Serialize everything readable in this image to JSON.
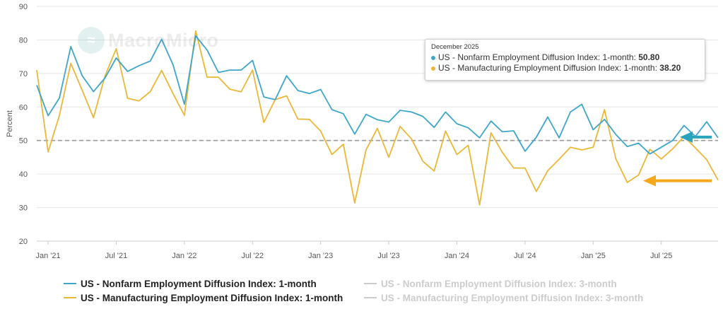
{
  "chart_data": {
    "type": "line",
    "ylabel": "Percent",
    "ylim": [
      20,
      90
    ],
    "yticks": [
      20,
      30,
      40,
      50,
      60,
      70,
      80,
      90
    ],
    "reference_line": 50,
    "xtick_labels": [
      "Jan '21",
      "Jul '21",
      "Jan '22",
      "Jul '22",
      "Jan '23",
      "Jul '23",
      "Jan '24",
      "Jul '24",
      "Jan '25",
      "Jul '25"
    ],
    "xtick_indices": [
      1,
      7,
      13,
      19,
      25,
      31,
      37,
      43,
      49,
      55
    ],
    "x_start": "Dec 2020",
    "x_end": "Dec 2025",
    "series": [
      {
        "name": "US - Nonfarm Employment Diffusion Index: 1-month",
        "color": "#3ea6c9",
        "values": [
          66.5,
          57.4,
          62.7,
          78.0,
          69.3,
          64.6,
          68.6,
          74.6,
          70.6,
          72.3,
          73.7,
          80.2,
          72.6,
          60.8,
          81.2,
          77.0,
          70.3,
          71.0,
          71.0,
          73.9,
          63.0,
          62.2,
          69.3,
          64.9,
          64.0,
          65.2,
          59.2,
          58.0,
          51.9,
          57.8,
          56.2,
          55.5,
          59.0,
          58.5,
          57.2,
          53.9,
          58.5,
          55.0,
          53.8,
          50.8,
          55.8,
          52.6,
          52.9,
          46.8,
          51.0,
          57.0,
          50.8,
          58.5,
          60.8,
          53.2,
          56.3,
          51.8,
          48.2,
          49.2,
          46.0,
          48.0,
          50.0,
          54.5,
          51.2,
          55.6,
          50.8
        ]
      },
      {
        "name": "US - Manufacturing Employment Diffusion Index: 1-month",
        "color": "#ebb737",
        "values": [
          71.0,
          46.6,
          57.5,
          73.0,
          65.0,
          56.8,
          69.2,
          77.4,
          62.6,
          61.8,
          64.6,
          70.9,
          64.0,
          57.5,
          82.7,
          68.9,
          68.9,
          65.3,
          64.5,
          71.0,
          55.4,
          62.2,
          63.3,
          56.4,
          56.3,
          52.8,
          45.8,
          48.9,
          31.4,
          47.2,
          53.6,
          45.0,
          54.2,
          50.5,
          43.8,
          40.9,
          52.8,
          45.8,
          48.6,
          30.8,
          52.3,
          46.5,
          41.8,
          41.8,
          34.8,
          41.0,
          44.4,
          48.0,
          47.2,
          48.0,
          59.2,
          44.5,
          37.5,
          39.7,
          47.4,
          44.5,
          47.5,
          51.2,
          47.8,
          44.3,
          38.2
        ]
      },
      {
        "name": "US - Nonfarm Employment Diffusion Index: 3-month",
        "color": "#cccccc",
        "visible": false
      },
      {
        "name": "US - Manufacturing Employment Diffusion Index: 3-month",
        "color": "#cccccc",
        "visible": false
      }
    ],
    "tooltip": {
      "date": "December 2025",
      "rows": [
        {
          "label": "US - Nonfarm Employment Diffusion Index: 1-month:",
          "value": "50.80",
          "color": "#3ea6c9"
        },
        {
          "label": "US - Manufacturing Employment Diffusion Index: 1-month:",
          "value": "38.20",
          "color": "#ebb737"
        }
      ]
    },
    "annotations": [
      {
        "type": "arrow",
        "color": "#2aa3bd",
        "target_value": 50.8
      },
      {
        "type": "arrow",
        "color": "#f5a81c",
        "target_value": 38.2
      }
    ]
  },
  "legend": [
    {
      "label": "US - Nonfarm Employment Diffusion Index: 1-month",
      "color": "#3ea6c9",
      "state": "on"
    },
    {
      "label": "US - Nonfarm Employment Diffusion Index: 3-month",
      "color": "#cccccc",
      "state": "off"
    },
    {
      "label": "US - Manufacturing Employment Diffusion Index: 1-month",
      "color": "#ebb737",
      "state": "on"
    },
    {
      "label": "US - Manufacturing Employment Diffusion Index: 3-month",
      "color": "#cccccc",
      "state": "off"
    }
  ],
  "watermark": {
    "text": "MacroMicro"
  }
}
